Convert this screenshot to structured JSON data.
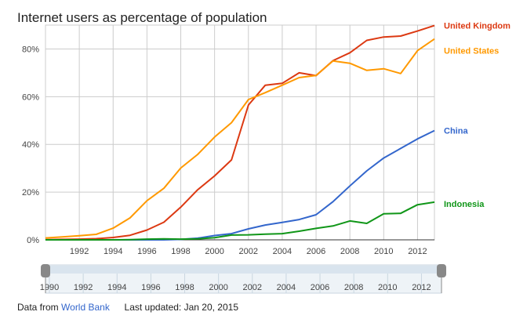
{
  "title": "Internet users as percentage of population",
  "footer": {
    "source_prefix": "Data from",
    "source_link": "World Bank",
    "updated_label": "Last updated:",
    "updated_value": "Jan 20, 2015"
  },
  "range_selector": {
    "start_label": "1990",
    "ticks": [
      "1990",
      "1992",
      "1994",
      "1996",
      "1998",
      "2000",
      "2002",
      "2004",
      "2006",
      "2008",
      "2010",
      "2012"
    ]
  },
  "chart_data": {
    "type": "line",
    "title": "Internet users as percentage of population",
    "xlabel": "",
    "ylabel": "",
    "xlim": [
      1990,
      2013
    ],
    "ylim": [
      0,
      90
    ],
    "x_ticks": [
      "1992",
      "1994",
      "1996",
      "1998",
      "2000",
      "2002",
      "2004",
      "2006",
      "2008",
      "2010",
      "2012"
    ],
    "y_ticks": [
      "0%",
      "20%",
      "40%",
      "60%",
      "80%"
    ],
    "grid": true,
    "legend": "right (inline labels at line ends)",
    "x": [
      1990,
      1991,
      1992,
      1993,
      1994,
      1995,
      1996,
      1997,
      1998,
      1999,
      2000,
      2001,
      2002,
      2003,
      2004,
      2005,
      2006,
      2007,
      2008,
      2009,
      2010,
      2011,
      2012,
      2013
    ],
    "series": [
      {
        "name": "United Kingdom",
        "color": "#dc3912",
        "values": [
          0.1,
          0.2,
          0.3,
          0.5,
          1.0,
          1.9,
          4.1,
          7.4,
          13.7,
          21.0,
          26.8,
          33.5,
          56.5,
          64.8,
          65.6,
          70.0,
          68.8,
          75.1,
          78.4,
          83.6,
          85.0,
          85.4,
          87.5,
          89.8
        ]
      },
      {
        "name": "United States",
        "color": "#ff9900",
        "values": [
          0.8,
          1.2,
          1.7,
          2.3,
          4.9,
          9.2,
          16.4,
          21.6,
          30.1,
          35.8,
          43.1,
          49.1,
          58.8,
          61.7,
          64.8,
          68.0,
          68.9,
          75.0,
          74.0,
          71.0,
          71.7,
          69.7,
          79.3,
          84.2
        ]
      },
      {
        "name": "China",
        "color": "#3366cc",
        "values": [
          0,
          0,
          0,
          0,
          0,
          0,
          0,
          0,
          0.2,
          0.7,
          1.8,
          2.6,
          4.6,
          6.2,
          7.3,
          8.5,
          10.5,
          16.0,
          22.6,
          28.9,
          34.3,
          38.3,
          42.3,
          45.8
        ]
      },
      {
        "name": "Indonesia",
        "color": "#109618",
        "values": [
          0,
          0,
          0,
          0,
          0,
          0.1,
          0.3,
          0.4,
          0.3,
          0.4,
          0.9,
          2.0,
          2.1,
          2.4,
          2.6,
          3.6,
          4.8,
          5.8,
          7.9,
          6.9,
          10.9,
          11.1,
          14.7,
          15.8
        ]
      }
    ]
  }
}
